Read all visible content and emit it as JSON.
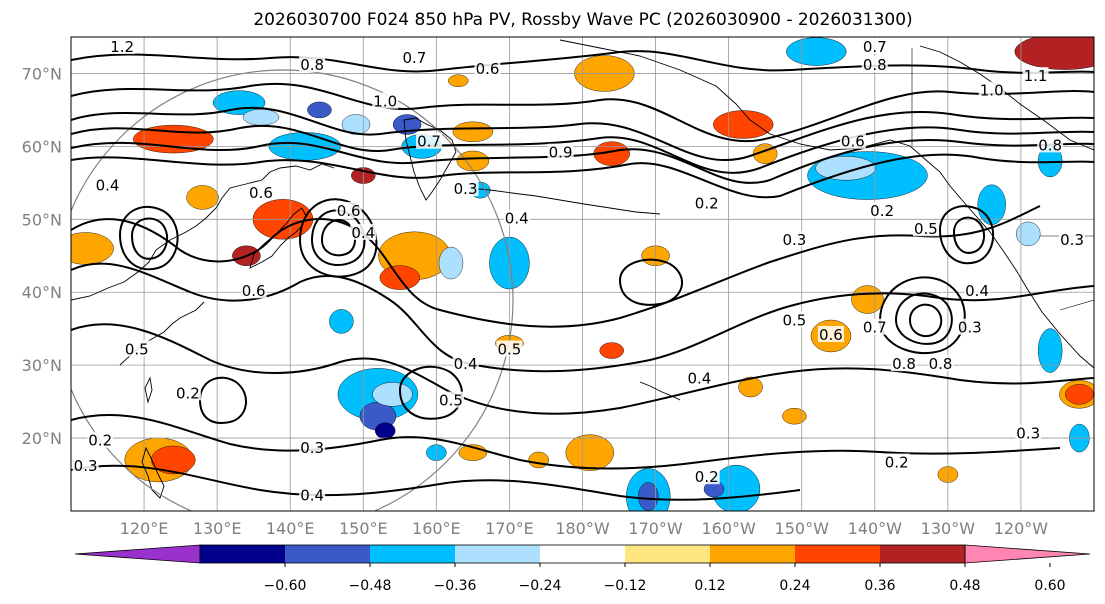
{
  "title": "2026030700 F024 850 hPa PV, Rossby Wave PC (2026030900 - 2026031300)",
  "axes": {
    "lat_labels": [
      "70°N",
      "60°N",
      "50°N",
      "40°N",
      "30°N",
      "20°N"
    ],
    "lon_labels": [
      "120°E",
      "130°E",
      "140°E",
      "150°E",
      "160°E",
      "170°E",
      "180°W",
      "170°W",
      "160°W",
      "150°W",
      "140°W",
      "130°W",
      "120°W"
    ]
  },
  "map": {
    "lat_range": [
      10,
      75
    ],
    "lon_range_east": [
      110,
      250
    ],
    "projection": "equirectangular",
    "gridlines": true,
    "features": [
      "coastlines",
      "country borders",
      "reference circle"
    ]
  },
  "colorbar": {
    "ticks": [
      "−0.60",
      "−0.48",
      "−0.36",
      "−0.24",
      "−0.12",
      "0.12",
      "0.24",
      "0.36",
      "0.48",
      "0.60"
    ],
    "colors": [
      "#9932CC",
      "#00008B",
      "#3A5BC7",
      "#00BFFF",
      "#ADDFFF",
      "#FFFFFF",
      "#FFE680",
      "#FFA500",
      "#FF4500",
      "#B22222",
      "#FF85B3"
    ],
    "extend": "both"
  },
  "contour_labels": [
    {
      "text": "1.2",
      "lon": 117,
      "lat": 73.5
    },
    {
      "text": "0.7",
      "lon": 157,
      "lat": 72
    },
    {
      "text": "0.8",
      "lon": 143,
      "lat": 71
    },
    {
      "text": "1.0",
      "lon": 153,
      "lat": 66
    },
    {
      "text": "0.6",
      "lon": 167,
      "lat": 70.5
    },
    {
      "text": "0.7",
      "lon": 220,
      "lat": 73.5
    },
    {
      "text": "0.8",
      "lon": 220,
      "lat": 71
    },
    {
      "text": "1.0",
      "lon": 236,
      "lat": 67.5
    },
    {
      "text": "1.1",
      "lon": 242,
      "lat": 69.5
    },
    {
      "text": "0.4",
      "lon": 115,
      "lat": 54.5
    },
    {
      "text": "0.7",
      "lon": 159,
      "lat": 60.5
    },
    {
      "text": "0.9",
      "lon": 177,
      "lat": 59
    },
    {
      "text": "0.3",
      "lon": 164,
      "lat": 54
    },
    {
      "text": "0.4",
      "lon": 171,
      "lat": 50
    },
    {
      "text": "0.2",
      "lon": 197,
      "lat": 52
    },
    {
      "text": "0.2",
      "lon": 221,
      "lat": 51
    },
    {
      "text": "0.6",
      "lon": 217,
      "lat": 60.5
    },
    {
      "text": "0.8",
      "lon": 244,
      "lat": 60
    },
    {
      "text": "0.3",
      "lon": 209,
      "lat": 47
    },
    {
      "text": "0.5",
      "lon": 227,
      "lat": 48.5
    },
    {
      "text": "0.3",
      "lon": 247,
      "lat": 47
    },
    {
      "text": "0.6",
      "lon": 136,
      "lat": 53.5
    },
    {
      "text": "0.6",
      "lon": 135,
      "lat": 40
    },
    {
      "text": "0.6",
      "lon": 148,
      "lat": 51
    },
    {
      "text": "0.4",
      "lon": 150,
      "lat": 48
    },
    {
      "text": "0.5",
      "lon": 119,
      "lat": 32
    },
    {
      "text": "0.2",
      "lon": 126,
      "lat": 26
    },
    {
      "text": "0.5",
      "lon": 209,
      "lat": 36
    },
    {
      "text": "0.6",
      "lon": 214,
      "lat": 34
    },
    {
      "text": "0.7",
      "lon": 220,
      "lat": 35
    },
    {
      "text": "0.4",
      "lon": 234,
      "lat": 40
    },
    {
      "text": "0.3",
      "lon": 233,
      "lat": 35
    },
    {
      "text": "0.8",
      "lon": 224,
      "lat": 30
    },
    {
      "text": "0.8",
      "lon": 229,
      "lat": 30
    },
    {
      "text": "0.4",
      "lon": 164,
      "lat": 30
    },
    {
      "text": "0.5",
      "lon": 170,
      "lat": 32
    },
    {
      "text": "0.5",
      "lon": 162,
      "lat": 25
    },
    {
      "text": "0.4",
      "lon": 196,
      "lat": 28
    },
    {
      "text": "0.3",
      "lon": 241,
      "lat": 20.5
    },
    {
      "text": "0.2",
      "lon": 114,
      "lat": 19.5
    },
    {
      "text": "0.3",
      "lon": 112,
      "lat": 16
    },
    {
      "text": "0.3",
      "lon": 143,
      "lat": 18.5
    },
    {
      "text": "0.4",
      "lon": 143,
      "lat": 12
    },
    {
      "text": "0.2",
      "lon": 197,
      "lat": 14.5
    },
    {
      "text": "0.2",
      "lon": 223,
      "lat": 16.5
    }
  ]
}
